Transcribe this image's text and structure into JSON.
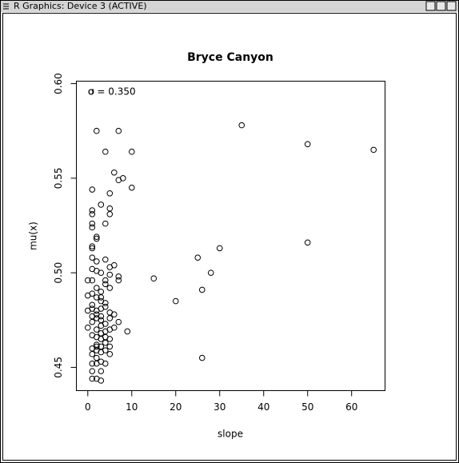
{
  "window_title": "R Graphics: Device 3 (ACTIVE)",
  "chart_data": {
    "type": "scatter",
    "title": "Bryce Canyon",
    "x_label": "slope",
    "y_label": "mu(x)",
    "legend_text": "σ =  0.350",
    "color": "#000000",
    "x": [
      2,
      7,
      35,
      50,
      65,
      4,
      10,
      6,
      8,
      7,
      1,
      10,
      5,
      3,
      5,
      5,
      1,
      1,
      4,
      1,
      1,
      2,
      2,
      1,
      1,
      50,
      30,
      25,
      1,
      4,
      2,
      6,
      1,
      2,
      3,
      5,
      5,
      28,
      7,
      15,
      0,
      4,
      4,
      7,
      2,
      3,
      5,
      1,
      2,
      26,
      20,
      3,
      3,
      4,
      1,
      0,
      1,
      2,
      3,
      4,
      5,
      2,
      3,
      1,
      1,
      2,
      3,
      5,
      4,
      7,
      0,
      6,
      5,
      9,
      2,
      3,
      4,
      1,
      2,
      3,
      5,
      4,
      2,
      3,
      5,
      1,
      2,
      4,
      3,
      1,
      5,
      2,
      26,
      3,
      2,
      1,
      4,
      1,
      3,
      1,
      2,
      3,
      2,
      4,
      6,
      0,
      1,
      3
    ],
    "values": [
      0.575,
      0.575,
      0.578,
      0.568,
      0.565,
      0.564,
      0.564,
      0.553,
      0.55,
      0.549,
      0.544,
      0.545,
      0.542,
      0.536,
      0.534,
      0.531,
      0.533,
      0.531,
      0.526,
      0.526,
      0.524,
      0.519,
      0.518,
      0.514,
      0.513,
      0.516,
      0.513,
      0.508,
      0.508,
      0.507,
      0.506,
      0.504,
      0.502,
      0.501,
      0.5,
      0.503,
      0.499,
      0.5,
      0.498,
      0.497,
      0.496,
      0.496,
      0.494,
      0.496,
      0.492,
      0.49,
      0.492,
      0.489,
      0.487,
      0.491,
      0.485,
      0.487,
      0.485,
      0.484,
      0.483,
      0.48,
      0.481,
      0.48,
      0.481,
      0.482,
      0.479,
      0.478,
      0.477,
      0.477,
      0.474,
      0.476,
      0.475,
      0.476,
      0.473,
      0.474,
      0.471,
      0.471,
      0.47,
      0.469,
      0.47,
      0.468,
      0.469,
      0.467,
      0.466,
      0.465,
      0.465,
      0.463,
      0.462,
      0.461,
      0.461,
      0.46,
      0.459,
      0.459,
      0.458,
      0.457,
      0.457,
      0.455,
      0.455,
      0.453,
      0.452,
      0.452,
      0.452,
      0.448,
      0.448,
      0.444,
      0.444,
      0.443,
      0.461,
      0.466,
      0.478,
      0.488,
      0.496,
      0.472
    ],
    "xlim": [
      -2.6,
      67.6
    ],
    "xticks": [
      0,
      10,
      20,
      30,
      40,
      50,
      60
    ],
    "ylim": [
      0.4377,
      0.6013
    ],
    "yticks": [
      0.45,
      {
        "value": 0.5,
        "label": "0.50"
      },
      0.55,
      {
        "value": 0.6,
        "label": "0.60"
      }
    ]
  }
}
